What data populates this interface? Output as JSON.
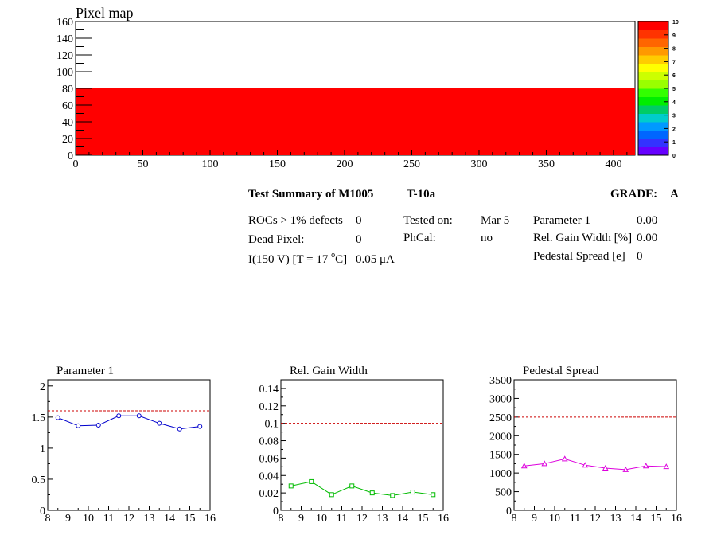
{
  "pixel_map": {
    "title": "Pixel map",
    "xlim": [
      0,
      416
    ],
    "ylim": [
      0,
      160
    ],
    "x_ticks": [
      0,
      50,
      100,
      150,
      200,
      250,
      300,
      350,
      400
    ],
    "y_ticks": [
      0,
      20,
      40,
      60,
      80,
      100,
      120,
      140,
      160
    ],
    "filled_region": {
      "x": [
        0,
        416
      ],
      "y": [
        0,
        80
      ],
      "color": "#ff0000"
    },
    "palette_labels": [
      "0",
      "1",
      "2",
      "3",
      "4",
      "5",
      "6",
      "7",
      "8",
      "9",
      "10"
    ],
    "palette_colors": [
      "#6600ff",
      "#3333ff",
      "#0066ff",
      "#0099ff",
      "#00cccc",
      "#00cc66",
      "#00ee00",
      "#33ff00",
      "#99ff00",
      "#ccff00",
      "#ffff00",
      "#ffcc00",
      "#ff9900",
      "#ff6600",
      "#ff3300",
      "#ff0000"
    ]
  },
  "summary": {
    "heading": "Test Summary of M1005",
    "test": "T-10a",
    "grade_label": "GRADE:",
    "grade": "A",
    "rocs_label": "ROCs > 1% defects",
    "rocs_value": "0",
    "dead_label": "Dead Pixel:",
    "dead_value": "0",
    "current_label_pre": "I(150 V) [T = 17 ",
    "current_label_sup": "o",
    "current_label_post": "C]",
    "current_value": "0.05 μA",
    "tested_label": "Tested on:",
    "tested_value": "Mar 5",
    "phcal_label": "PhCal:",
    "phcal_value": "no",
    "param1_label": "Parameter 1",
    "param1_value": "0.00",
    "relgain_label": "Rel. Gain Width [%]",
    "relgain_value": "0.00",
    "pedestal_label": "Pedestal Spread [e]",
    "pedestal_value": "0"
  },
  "chart_data": [
    {
      "type": "line",
      "title": "Parameter 1",
      "x": [
        8.5,
        9.5,
        10.5,
        11.5,
        12.5,
        13.5,
        14.5,
        15.5
      ],
      "series": [
        {
          "values": [
            1.49,
            1.36,
            1.37,
            1.52,
            1.52,
            1.4,
            1.31,
            1.35
          ],
          "color": "#0000cc",
          "marker": "circle"
        }
      ],
      "threshold": 1.6,
      "xlim": [
        8,
        16
      ],
      "ylim": [
        0,
        2.1
      ],
      "x_ticks": [
        8,
        9,
        10,
        11,
        12,
        13,
        14,
        15,
        16
      ],
      "y_ticks": [
        0,
        0.5,
        1,
        1.5,
        2
      ],
      "y_tick_labels": [
        "0",
        "0.5",
        "1",
        "1.5",
        "2"
      ]
    },
    {
      "type": "line",
      "title": "Rel. Gain Width",
      "x": [
        8.5,
        9.5,
        10.5,
        11.5,
        12.5,
        13.5,
        14.5,
        15.5
      ],
      "series": [
        {
          "values": [
            0.028,
            0.033,
            0.018,
            0.028,
            0.02,
            0.017,
            0.021,
            0.018
          ],
          "color": "#00bb00",
          "marker": "square"
        }
      ],
      "threshold": 0.1,
      "xlim": [
        8,
        16
      ],
      "ylim": [
        0,
        0.15
      ],
      "x_ticks": [
        8,
        9,
        10,
        11,
        12,
        13,
        14,
        15,
        16
      ],
      "y_ticks": [
        0,
        0.02,
        0.04,
        0.06,
        0.08,
        0.1,
        0.12,
        0.14
      ],
      "y_tick_labels": [
        "0",
        "0.02",
        "0.04",
        "0.06",
        "0.08",
        "0.1",
        "0.12",
        "0.14"
      ]
    },
    {
      "type": "line",
      "title": "Pedestal Spread",
      "x": [
        8.5,
        9.5,
        10.5,
        11.5,
        12.5,
        13.5,
        14.5,
        15.5
      ],
      "series": [
        {
          "values": [
            1190,
            1250,
            1380,
            1210,
            1130,
            1090,
            1190,
            1170
          ],
          "color": "#dd00dd",
          "marker": "triangle"
        }
      ],
      "threshold": 2500,
      "xlim": [
        8,
        16
      ],
      "ylim": [
        0,
        3500
      ],
      "x_ticks": [
        8,
        9,
        10,
        11,
        12,
        13,
        14,
        15,
        16
      ],
      "y_ticks": [
        0,
        500,
        1000,
        1500,
        2000,
        2500,
        3000,
        3500
      ],
      "y_tick_labels": [
        "0",
        "500",
        "1000",
        "1500",
        "2000",
        "2500",
        "3000",
        "3500"
      ]
    }
  ]
}
